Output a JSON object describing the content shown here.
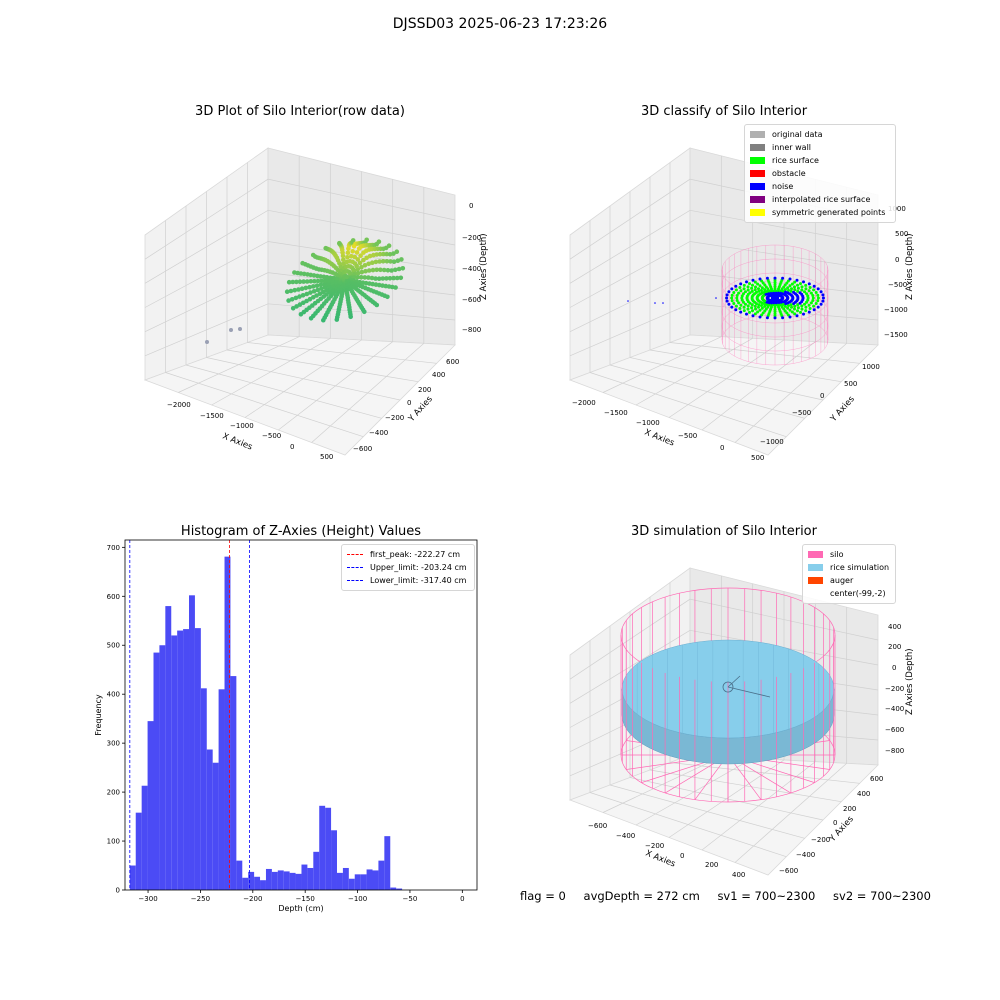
{
  "figure": {
    "suptitle": "DJSSD03 2025-06-23 17:23:26",
    "status": {
      "flag": "flag = 0",
      "avg_depth": "avgDepth = 272 cm",
      "sv1": "sv1 = 700~2300",
      "sv2": "sv2 = 700~2300"
    }
  },
  "colors": {
    "original_data": "#b0b0b0",
    "inner_wall": "#808080",
    "rice_surface": "#00ff00",
    "obstacle": "#ff0000",
    "noise": "#0000ff",
    "interpolated_rice_surface": "#800080",
    "symmetric_generated_points": "#ffff00",
    "silo": "#ff69b4",
    "rice_simulation": "#87ceeb",
    "auger": "#ff4500",
    "hist_bars": "#4b4bf5",
    "first_peak_line": "#ff0000",
    "limit_lines": "#0000ff"
  },
  "chart_data": [
    {
      "type": "scatter",
      "title": "3D Plot of Silo Interior(row data)",
      "xlabel": "X Axies",
      "ylabel": "Y Axies",
      "zlabel": "Z Axies (Depth)",
      "xticks": [
        "−2000",
        "−1500",
        "−1000",
        "−500",
        "0",
        "500"
      ],
      "yticks": [
        "−600",
        "−400",
        "−200",
        "0",
        "200",
        "400",
        "600"
      ],
      "zticks": [
        "0",
        "−200",
        "−400",
        "−600",
        "−800"
      ]
    },
    {
      "type": "scatter",
      "title": "3D classify of Silo Interior",
      "xlabel": "X Axies",
      "ylabel": "Y Axies",
      "zlabel": "Z Axies (Depth)",
      "xticks": [
        "−2000",
        "−1500",
        "−1000",
        "−500",
        "0",
        "500"
      ],
      "yticks": [
        "−1000",
        "−500",
        "0",
        "500",
        "1000"
      ],
      "zticks": [
        "1000",
        "500",
        "0",
        "−500",
        "−1000",
        "−1500"
      ],
      "legend": [
        "original data",
        "inner wall",
        "rice surface",
        "obstacle",
        "noise",
        "interpolated rice surface",
        "symmetric generated points"
      ],
      "legend_position": "upper-right"
    },
    {
      "type": "bar",
      "title": "Histogram of Z-Axies (Height) Values",
      "xlabel": "Depth (cm)",
      "ylabel": "Frequency",
      "xlim": [
        -322,
        14
      ],
      "ylim": [
        0,
        715
      ],
      "xticks": [
        -300,
        -250,
        -200,
        -150,
        -100,
        -50,
        0
      ],
      "xtick_labels": [
        "−300",
        "−250",
        "−200",
        "−150",
        "−100",
        "−50",
        "0"
      ],
      "yticks": [
        0,
        100,
        200,
        300,
        400,
        500,
        600,
        700
      ],
      "bin_start": -317.4,
      "bin_width": 5.65,
      "values": [
        50,
        158,
        213,
        345,
        485,
        500,
        580,
        520,
        530,
        533,
        602,
        535,
        412,
        287,
        260,
        410,
        681,
        437,
        60,
        25,
        37,
        27,
        20,
        43,
        37,
        40,
        38,
        35,
        33,
        52,
        45,
        78,
        172,
        168,
        122,
        35,
        45,
        23,
        32,
        32,
        42,
        40,
        60,
        110,
        5,
        3
      ],
      "vlines": [
        {
          "label": "first_peak: -222.27 cm",
          "x": -222.27,
          "color_key": "first_peak_line"
        },
        {
          "label": "Upper_limit: -203.24 cm",
          "x": -203.24,
          "color_key": "limit_lines"
        },
        {
          "label": "Lower_limit: -317.40 cm",
          "x": -317.4,
          "color_key": "limit_lines"
        }
      ],
      "legend_position": "upper-right"
    },
    {
      "type": "scatter",
      "title": "3D simulation of Silo Interior",
      "xlabel": "X Axies",
      "ylabel": "Y Axies",
      "zlabel": "Z Axies (Depth)",
      "xticks": [
        "−600",
        "−400",
        "−200",
        "0",
        "200",
        "400"
      ],
      "yticks": [
        "−600",
        "−400",
        "−200",
        "0",
        "200",
        "400",
        "600"
      ],
      "zticks": [
        "400",
        "200",
        "0",
        "−200",
        "−400",
        "−600",
        "−800"
      ],
      "legend": [
        "silo",
        "rice simulation",
        "auger",
        "center(-99,-2)"
      ],
      "legend_position": "upper-right"
    }
  ]
}
